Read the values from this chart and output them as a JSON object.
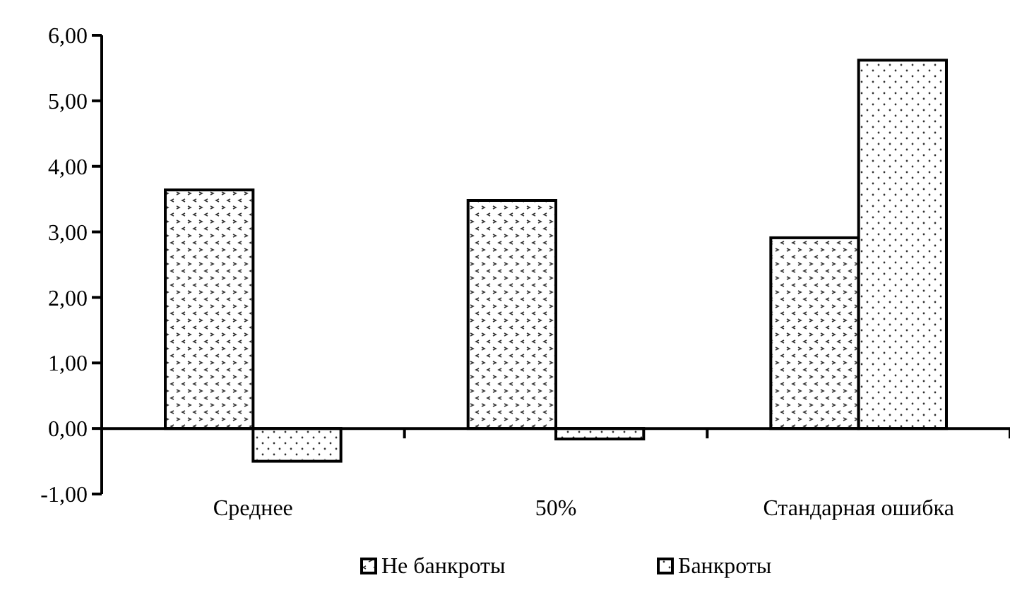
{
  "chart_data": {
    "type": "bar",
    "categories": [
      "Среднее",
      "50%",
      "Стандарная ошибка"
    ],
    "series": [
      {
        "name": "Не банкроты",
        "color": "#ffffff",
        "values": [
          3.64,
          3.48,
          2.91
        ]
      },
      {
        "name": "Банкроты",
        "color": "#ffffff",
        "values": [
          -0.5,
          -0.16,
          5.62
        ]
      }
    ],
    "ylim": [
      -1,
      6
    ],
    "yticks": [
      {
        "value": -1,
        "label": "-1,00"
      },
      {
        "value": 0,
        "label": "0,00"
      },
      {
        "value": 1,
        "label": "1,00"
      },
      {
        "value": 2,
        "label": "2,00"
      },
      {
        "value": 3,
        "label": "3,00"
      },
      {
        "value": 4,
        "label": "4,00"
      },
      {
        "value": 5,
        "label": "5,00"
      },
      {
        "value": 6,
        "label": "6,00"
      }
    ],
    "legend": "bottom"
  }
}
